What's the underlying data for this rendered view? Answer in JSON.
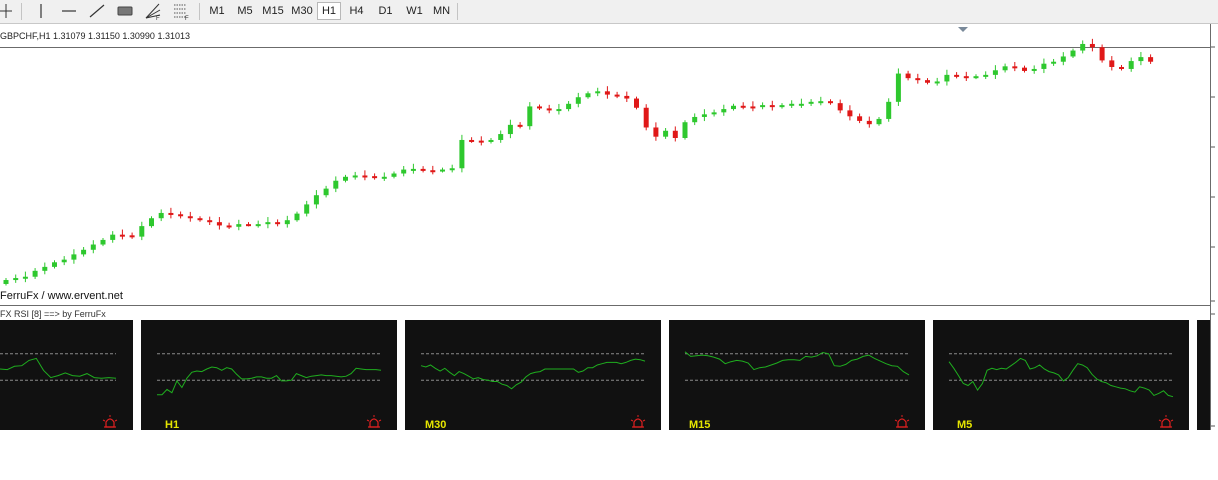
{
  "toolbar": {
    "tools": [
      "crosshair-icon",
      "vertical-line-icon",
      "horizontal-line-icon",
      "trend-line-icon",
      "rectangle-icon",
      "fibonacci-fan-icon",
      "fibonacci-retracement-icon"
    ],
    "periods": [
      "M1",
      "M5",
      "M15",
      "M30",
      "H1",
      "H4",
      "D1",
      "W1",
      "MN"
    ],
    "active_period": "H1"
  },
  "chart": {
    "info": "GBPCHF,H1  1.31079 1.31150 1.30990 1.31013",
    "watermark": "FerruFx / www.ervent.net",
    "indicator_name": "FX RSI [8] ==> by FerruFx",
    "bull_color": "#2ec82e",
    "bear_color": "#e01818",
    "period_marker": "triangle-down-icon"
  },
  "panels": [
    {
      "label": "",
      "alert_icon": "alarm-icon"
    },
    {
      "label": "H1",
      "alert_icon": "alarm-icon"
    },
    {
      "label": "M30",
      "alert_icon": "alarm-icon"
    },
    {
      "label": "M15",
      "alert_icon": "alarm-icon"
    },
    {
      "label": "M5",
      "alert_icon": "alarm-icon"
    },
    {
      "label": "",
      "alert_icon": ""
    }
  ],
  "indicator_colors": {
    "panel_bg": "#111111",
    "rsi_line": "#1fae1f",
    "level_line": "#8a8a8a",
    "label": "#e6e600",
    "alert": "#e02020"
  },
  "chart_data": [
    {
      "type": "candlestick",
      "series": [
        {
          "name": "GBPCHF,H1",
          "close": [
            1.2958,
            1.2961,
            1.2963,
            1.2972,
            1.2978,
            1.2985,
            1.2989,
            1.2997,
            1.3004,
            1.3012,
            1.3019,
            1.3027,
            1.3026,
            1.3024,
            1.304,
            1.3052,
            1.306,
            1.3058,
            1.3055,
            1.3052,
            1.3049,
            1.3046,
            1.3041,
            1.3039,
            1.3043,
            1.3042,
            1.3043,
            1.3046,
            1.3043,
            1.3049,
            1.3059,
            1.3073,
            1.3087,
            1.3097,
            1.3109,
            1.3115,
            1.3117,
            1.3116,
            1.3114,
            1.3115,
            1.312,
            1.3126,
            1.3127,
            1.3125,
            1.3124,
            1.3126,
            1.3128,
            1.3171,
            1.317,
            1.3168,
            1.3171,
            1.318,
            1.3194,
            1.3192,
            1.3222,
            1.3219,
            1.3216,
            1.3218,
            1.3226,
            1.3236,
            1.3242,
            1.3245,
            1.324,
            1.3238,
            1.3234,
            1.322,
            1.319,
            1.3176,
            1.3185,
            1.3174,
            1.3198,
            1.3206,
            1.321,
            1.3213,
            1.3218,
            1.3223,
            1.3222,
            1.3221,
            1.3224,
            1.3221,
            1.3224,
            1.3226,
            1.3226,
            1.3229,
            1.323,
            1.3227,
            1.3216,
            1.3207,
            1.32,
            1.3195,
            1.3203,
            1.3229,
            1.3272,
            1.3265,
            1.3262,
            1.3258,
            1.326,
            1.327,
            1.3268,
            1.3266,
            1.3268,
            1.327,
            1.3277,
            1.3283,
            1.3281,
            1.3276,
            1.3279,
            1.3287,
            1.329,
            1.3298,
            1.3307,
            1.3317,
            1.3312,
            1.3292,
            1.3282,
            1.3279,
            1.3291,
            1.3297,
            1.329
          ]
        }
      ]
    },
    {
      "type": "line",
      "series": [
        {
          "name": "",
          "values": [
            47,
            46,
            51,
            52,
            60,
            63,
            45,
            34,
            37,
            41,
            37,
            36,
            40,
            34,
            33,
            34,
            33
          ]
        }
      ],
      "ylim": [
        0,
        100
      ],
      "levels": [
        70,
        30
      ]
    },
    {
      "type": "line",
      "series": [
        {
          "name": "H1",
          "values": [
            8,
            8,
            16,
            11,
            29,
            19,
            33,
            42,
            44,
            43,
            47,
            50,
            49,
            45,
            49,
            47,
            39,
            32,
            32,
            33,
            35,
            35,
            33,
            33,
            37,
            29,
            29,
            30,
            40,
            37,
            34,
            36,
            37,
            38,
            37,
            37,
            36,
            35,
            36,
            40,
            48,
            47,
            46,
            46,
            46,
            45
          ]
        }
      ],
      "ylim": [
        0,
        100
      ],
      "levels": [
        70,
        30
      ]
    },
    {
      "type": "line",
      "series": [
        {
          "name": "M30",
          "values": [
            52,
            50,
            53,
            48,
            44,
            48,
            42,
            37,
            43,
            40,
            36,
            32,
            34,
            31,
            30,
            28,
            28,
            24,
            22,
            17,
            23,
            27,
            35,
            40,
            42,
            43,
            47,
            47,
            47,
            47,
            47,
            47,
            47,
            42,
            44,
            49,
            49,
            53,
            55,
            57,
            57,
            57,
            55,
            57,
            60,
            62,
            61,
            59
          ]
        }
      ],
      "ylim": [
        0,
        100
      ],
      "levels": [
        70,
        30
      ]
    },
    {
      "type": "line",
      "series": [
        {
          "name": "M15",
          "values": [
            73,
            66,
            67,
            68,
            67,
            65,
            62,
            55,
            58,
            60,
            59,
            56,
            46,
            49,
            50,
            53,
            56,
            60,
            61,
            61,
            60,
            66,
            65,
            67,
            72,
            70,
            52,
            51,
            54,
            60,
            62,
            66,
            68,
            63,
            59,
            55,
            52,
            51,
            43,
            38
          ]
        }
      ],
      "ylim": [
        0,
        100
      ],
      "levels": [
        70,
        30
      ]
    },
    {
      "type": "line",
      "series": [
        {
          "name": "M5",
          "values": [
            58,
            48,
            37,
            25,
            22,
            28,
            15,
            25,
            45,
            48,
            46,
            48,
            47,
            52,
            57,
            63,
            60,
            47,
            49,
            53,
            47,
            43,
            41,
            38,
            29,
            34,
            45,
            55,
            53,
            49,
            39,
            32,
            28,
            26,
            22,
            20,
            18,
            17,
            14,
            12,
            20,
            18,
            15,
            7,
            10,
            14,
            7,
            5
          ]
        }
      ],
      "ylim": [
        0,
        100
      ],
      "levels": [
        70,
        30
      ]
    }
  ]
}
